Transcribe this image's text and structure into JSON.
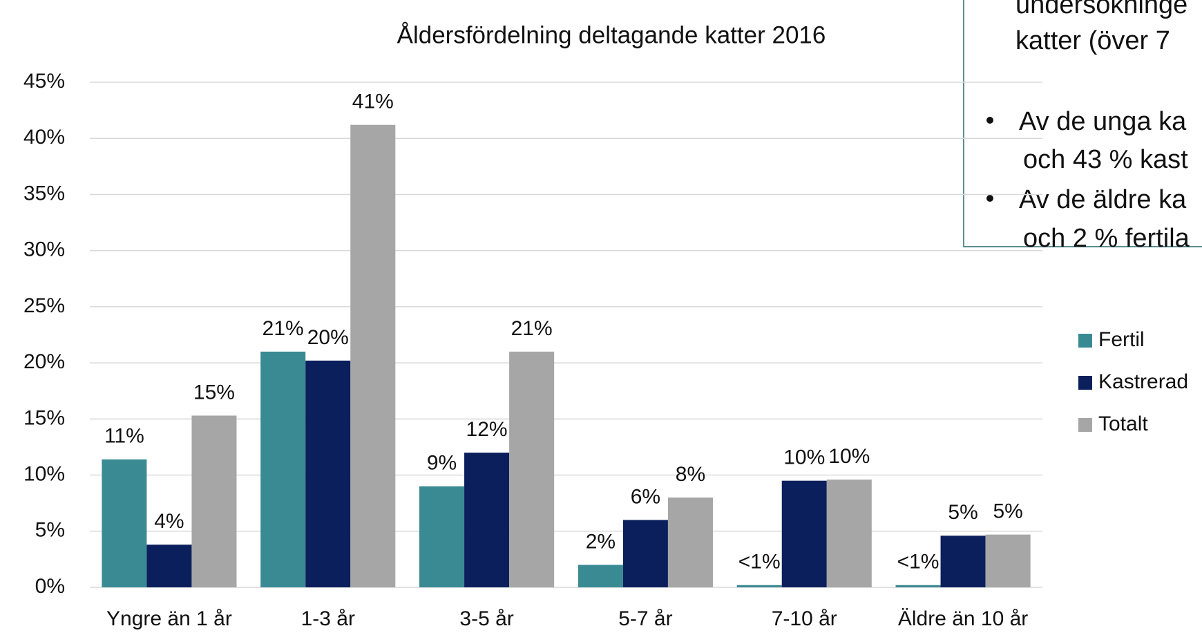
{
  "chart_data": {
    "type": "bar",
    "title": "Åldersfördelning deltagande katter 2016",
    "categories": [
      "Yngre än 1 år",
      "1-3 år",
      "3-5 år",
      "5-7 år",
      "7-10 år",
      "Äldre än 10 år"
    ],
    "series": [
      {
        "name": "Fertil",
        "color": "#3a8a93",
        "values": [
          11.4,
          21,
          9,
          2,
          0.2,
          0.2
        ],
        "value_labels": [
          "11%",
          "21%",
          "9%",
          "2%",
          "<1%",
          "<1%"
        ]
      },
      {
        "name": "Kastrerad",
        "color": "#0b1f5c",
        "values": [
          3.8,
          20.2,
          12,
          6,
          9.5,
          4.6
        ],
        "value_labels": [
          "4%",
          "20%",
          "12%",
          "6%",
          "10%",
          "5%"
        ]
      },
      {
        "name": "Totalt",
        "color": "#a6a6a6",
        "values": [
          15.3,
          41.2,
          21,
          8,
          9.6,
          4.7
        ],
        "value_labels": [
          "15%",
          "41%",
          "21%",
          "8%",
          "10%",
          "5%"
        ]
      }
    ],
    "ylim": [
      0,
      45
    ],
    "yticks": [
      {
        "value": 0,
        "label": "0%"
      },
      {
        "value": 5,
        "label": "5%"
      },
      {
        "value": 10,
        "label": "10%"
      },
      {
        "value": 15,
        "label": "15%"
      },
      {
        "value": 20,
        "label": "20%"
      },
      {
        "value": 25,
        "label": "25%"
      },
      {
        "value": 30,
        "label": "30%"
      },
      {
        "value": 35,
        "label": "35%"
      },
      {
        "value": 40,
        "label": "40%"
      },
      {
        "value": 45,
        "label": "45%"
      }
    ],
    "grid": true,
    "legend": "right",
    "annotations": [
      "undersökninge",
      "katter (över 7",
      "Av de unga ka",
      "och 43 % kast",
      "Av de äldre ka",
      "och 2 % fertila"
    ]
  }
}
